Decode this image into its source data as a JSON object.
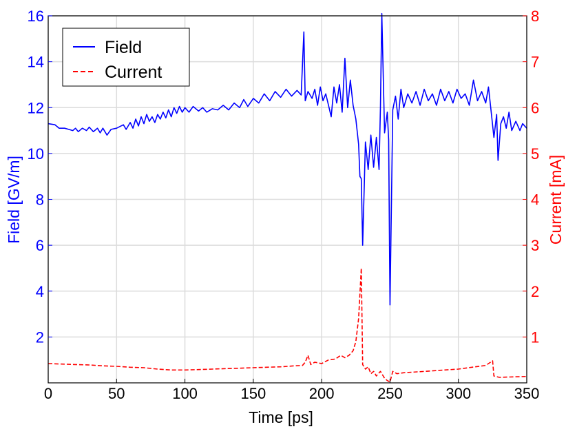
{
  "chart_data": {
    "type": "line",
    "xlabel": "Time [ps]",
    "ylabel_left": "Field [GV/m]",
    "ylabel_right": "Current [mA]",
    "xlim": [
      0,
      350
    ],
    "ylim_left": [
      0,
      16
    ],
    "ylim_right": [
      0,
      8
    ],
    "x_ticks": [
      0,
      50,
      100,
      150,
      200,
      250,
      300,
      350
    ],
    "y_ticks_left": [
      2,
      4,
      6,
      8,
      10,
      12,
      14,
      16
    ],
    "y_ticks_right": [
      1,
      2,
      3,
      4,
      5,
      6,
      7,
      8
    ],
    "grid": true,
    "legend_position": "top-left",
    "colors": {
      "field": "#0000ff",
      "current": "#ff0000"
    },
    "series": [
      {
        "name": "Field",
        "axis": "left",
        "style": "solid",
        "color": "#0000ff",
        "points": [
          [
            0,
            11.3
          ],
          [
            5,
            11.25
          ],
          [
            8,
            11.1
          ],
          [
            12,
            11.1
          ],
          [
            15,
            11.05
          ],
          [
            18,
            11.0
          ],
          [
            20,
            11.1
          ],
          [
            22,
            10.95
          ],
          [
            25,
            11.1
          ],
          [
            28,
            11.0
          ],
          [
            30,
            11.15
          ],
          [
            33,
            10.95
          ],
          [
            36,
            11.1
          ],
          [
            38,
            10.9
          ],
          [
            40,
            11.1
          ],
          [
            43,
            10.8
          ],
          [
            46,
            11.05
          ],
          [
            50,
            11.1
          ],
          [
            55,
            11.25
          ],
          [
            57,
            11.05
          ],
          [
            60,
            11.35
          ],
          [
            62,
            11.1
          ],
          [
            64,
            11.5
          ],
          [
            66,
            11.2
          ],
          [
            68,
            11.6
          ],
          [
            70,
            11.3
          ],
          [
            72,
            11.7
          ],
          [
            74,
            11.4
          ],
          [
            76,
            11.6
          ],
          [
            78,
            11.35
          ],
          [
            80,
            11.7
          ],
          [
            82,
            11.5
          ],
          [
            84,
            11.8
          ],
          [
            86,
            11.55
          ],
          [
            88,
            11.9
          ],
          [
            90,
            11.6
          ],
          [
            92,
            12.0
          ],
          [
            94,
            11.75
          ],
          [
            96,
            12.05
          ],
          [
            98,
            11.8
          ],
          [
            100,
            12.0
          ],
          [
            103,
            11.8
          ],
          [
            106,
            12.05
          ],
          [
            110,
            11.85
          ],
          [
            113,
            12.0
          ],
          [
            116,
            11.8
          ],
          [
            120,
            11.95
          ],
          [
            124,
            11.9
          ],
          [
            128,
            12.1
          ],
          [
            132,
            11.9
          ],
          [
            136,
            12.2
          ],
          [
            140,
            12.0
          ],
          [
            143,
            12.35
          ],
          [
            146,
            12.05
          ],
          [
            150,
            12.4
          ],
          [
            154,
            12.2
          ],
          [
            158,
            12.6
          ],
          [
            162,
            12.3
          ],
          [
            166,
            12.7
          ],
          [
            170,
            12.45
          ],
          [
            174,
            12.8
          ],
          [
            178,
            12.5
          ],
          [
            182,
            12.75
          ],
          [
            185,
            12.55
          ],
          [
            187,
            15.3
          ],
          [
            188,
            12.3
          ],
          [
            190,
            12.7
          ],
          [
            193,
            12.4
          ],
          [
            195,
            12.8
          ],
          [
            197,
            12.1
          ],
          [
            199,
            12.9
          ],
          [
            201,
            12.3
          ],
          [
            203,
            12.6
          ],
          [
            205,
            12.1
          ],
          [
            207,
            11.6
          ],
          [
            209,
            12.9
          ],
          [
            211,
            12.2
          ],
          [
            213,
            13.0
          ],
          [
            215,
            11.8
          ],
          [
            217,
            14.15
          ],
          [
            219,
            12.0
          ],
          [
            221,
            13.2
          ],
          [
            223,
            12.1
          ],
          [
            225,
            11.5
          ],
          [
            227,
            10.4
          ],
          [
            228,
            9.0
          ],
          [
            229,
            8.9
          ],
          [
            230,
            6.0
          ],
          [
            232,
            10.5
          ],
          [
            234,
            9.3
          ],
          [
            236,
            10.8
          ],
          [
            238,
            9.4
          ],
          [
            240,
            10.7
          ],
          [
            242,
            9.3
          ],
          [
            243,
            12.0
          ],
          [
            244,
            16.1
          ],
          [
            246,
            10.9
          ],
          [
            248,
            11.8
          ],
          [
            249,
            10.6
          ],
          [
            250,
            3.4
          ],
          [
            252,
            11.9
          ],
          [
            254,
            12.5
          ],
          [
            256,
            11.5
          ],
          [
            258,
            12.8
          ],
          [
            260,
            12.0
          ],
          [
            263,
            12.6
          ],
          [
            266,
            12.2
          ],
          [
            269,
            12.7
          ],
          [
            272,
            12.1
          ],
          [
            275,
            12.8
          ],
          [
            278,
            12.3
          ],
          [
            281,
            12.6
          ],
          [
            284,
            12.1
          ],
          [
            287,
            12.8
          ],
          [
            290,
            12.3
          ],
          [
            293,
            12.7
          ],
          [
            296,
            12.2
          ],
          [
            299,
            12.8
          ],
          [
            302,
            12.4
          ],
          [
            305,
            12.6
          ],
          [
            308,
            12.1
          ],
          [
            311,
            13.2
          ],
          [
            314,
            12.3
          ],
          [
            317,
            12.7
          ],
          [
            320,
            12.2
          ],
          [
            322,
            12.9
          ],
          [
            324,
            11.8
          ],
          [
            326,
            10.7
          ],
          [
            328,
            11.7
          ],
          [
            329,
            9.7
          ],
          [
            331,
            11.3
          ],
          [
            333,
            11.6
          ],
          [
            335,
            11.1
          ],
          [
            337,
            11.8
          ],
          [
            339,
            11.0
          ],
          [
            342,
            11.4
          ],
          [
            345,
            11.0
          ],
          [
            347,
            11.3
          ],
          [
            350,
            11.1
          ]
        ]
      },
      {
        "name": "Current",
        "axis": "right",
        "style": "dashed",
        "color": "#ff0000",
        "points": [
          [
            0,
            0.42
          ],
          [
            10,
            0.41
          ],
          [
            20,
            0.4
          ],
          [
            30,
            0.39
          ],
          [
            40,
            0.37
          ],
          [
            50,
            0.36
          ],
          [
            60,
            0.34
          ],
          [
            70,
            0.33
          ],
          [
            80,
            0.3
          ],
          [
            90,
            0.28
          ],
          [
            100,
            0.28
          ],
          [
            110,
            0.29
          ],
          [
            120,
            0.3
          ],
          [
            130,
            0.31
          ],
          [
            140,
            0.32
          ],
          [
            150,
            0.33
          ],
          [
            160,
            0.34
          ],
          [
            170,
            0.35
          ],
          [
            180,
            0.37
          ],
          [
            186,
            0.38
          ],
          [
            188,
            0.45
          ],
          [
            190,
            0.6
          ],
          [
            192,
            0.4
          ],
          [
            195,
            0.45
          ],
          [
            200,
            0.42
          ],
          [
            205,
            0.5
          ],
          [
            210,
            0.52
          ],
          [
            214,
            0.6
          ],
          [
            217,
            0.55
          ],
          [
            220,
            0.6
          ],
          [
            223,
            0.7
          ],
          [
            225,
            0.9
          ],
          [
            227,
            1.4
          ],
          [
            229,
            2.5
          ],
          [
            230,
            0.4
          ],
          [
            232,
            0.3
          ],
          [
            234,
            0.35
          ],
          [
            236,
            0.2
          ],
          [
            238,
            0.25
          ],
          [
            240,
            0.15
          ],
          [
            243,
            0.25
          ],
          [
            246,
            0.1
          ],
          [
            248,
            0.05
          ],
          [
            250,
            0.02
          ],
          [
            252,
            0.25
          ],
          [
            255,
            0.2
          ],
          [
            260,
            0.22
          ],
          [
            270,
            0.24
          ],
          [
            280,
            0.26
          ],
          [
            290,
            0.28
          ],
          [
            300,
            0.3
          ],
          [
            310,
            0.34
          ],
          [
            320,
            0.38
          ],
          [
            325,
            0.48
          ],
          [
            326,
            0.15
          ],
          [
            330,
            0.12
          ],
          [
            340,
            0.13
          ],
          [
            350,
            0.14
          ]
        ]
      }
    ]
  }
}
